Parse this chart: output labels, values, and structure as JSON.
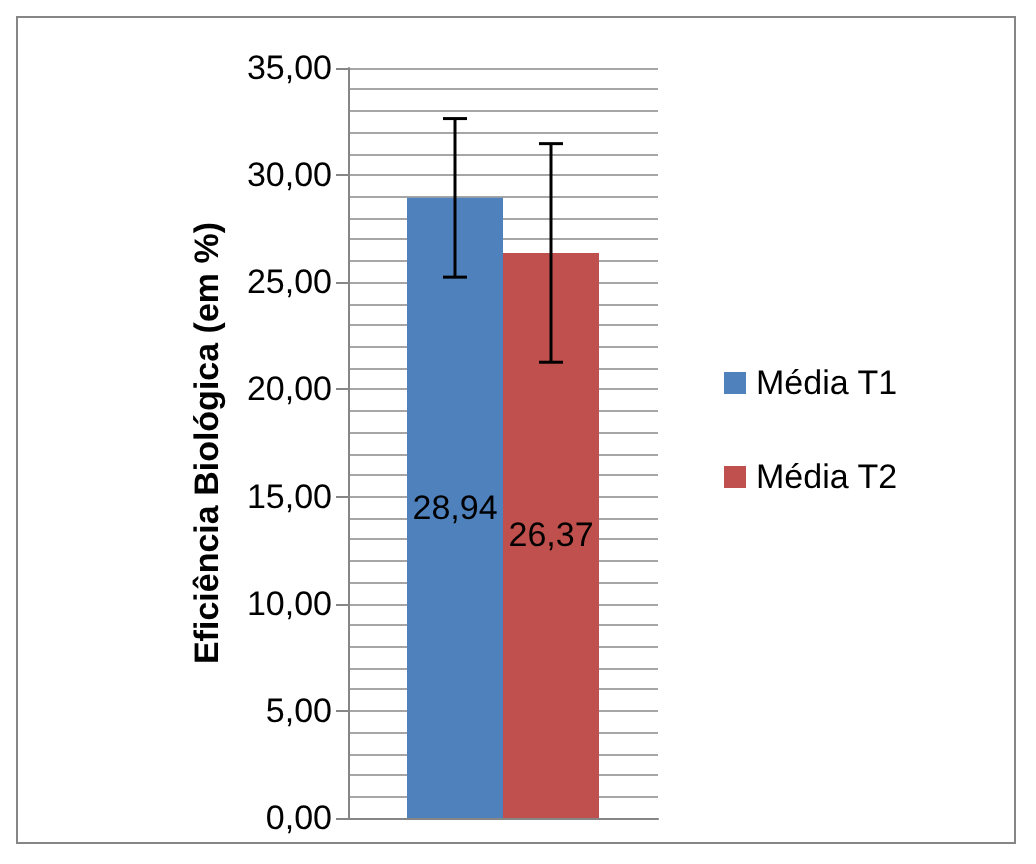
{
  "chart_data": {
    "type": "bar",
    "ylabel": "Eficiência Biológica (em %)",
    "categories": [
      null
    ],
    "series": [
      {
        "name": "Média T1",
        "color": "#4f81bd",
        "values": [
          28.94
        ],
        "errors": [
          3.7
        ],
        "value_labels": [
          "28,94"
        ]
      },
      {
        "name": "Média T2",
        "color": "#c0504d",
        "values": [
          26.37
        ],
        "errors": [
          5.1
        ],
        "value_labels": [
          "26,37"
        ]
      }
    ],
    "ylim": [
      0,
      35
    ],
    "yticks": [
      {
        "value": 0,
        "label": "0,00"
      },
      {
        "value": 1,
        "label": null
      },
      {
        "value": 2,
        "label": null
      },
      {
        "value": 3,
        "label": null
      },
      {
        "value": 4,
        "label": null
      },
      {
        "value": 5,
        "label": "5,00"
      },
      {
        "value": 6,
        "label": null
      },
      {
        "value": 7,
        "label": null
      },
      {
        "value": 8,
        "label": null
      },
      {
        "value": 9,
        "label": null
      },
      {
        "value": 10,
        "label": "10,00"
      },
      {
        "value": 11,
        "label": null
      },
      {
        "value": 12,
        "label": null
      },
      {
        "value": 13,
        "label": null
      },
      {
        "value": 14,
        "label": null
      },
      {
        "value": 15,
        "label": "15,00"
      },
      {
        "value": 16,
        "label": null
      },
      {
        "value": 17,
        "label": null
      },
      {
        "value": 18,
        "label": null
      },
      {
        "value": 19,
        "label": null
      },
      {
        "value": 20,
        "label": "20,00"
      },
      {
        "value": 21,
        "label": null
      },
      {
        "value": 22,
        "label": null
      },
      {
        "value": 23,
        "label": null
      },
      {
        "value": 24,
        "label": null
      },
      {
        "value": 25,
        "label": "25,00"
      },
      {
        "value": 26,
        "label": null
      },
      {
        "value": 27,
        "label": null
      },
      {
        "value": 28,
        "label": null
      },
      {
        "value": 29,
        "label": null
      },
      {
        "value": 30,
        "label": "30,00"
      },
      {
        "value": 31,
        "label": null
      },
      {
        "value": 32,
        "label": null
      },
      {
        "value": 33,
        "label": null
      },
      {
        "value": 34,
        "label": null
      },
      {
        "value": 35,
        "label": "35,00"
      }
    ],
    "grid": "y",
    "legend": "right"
  }
}
